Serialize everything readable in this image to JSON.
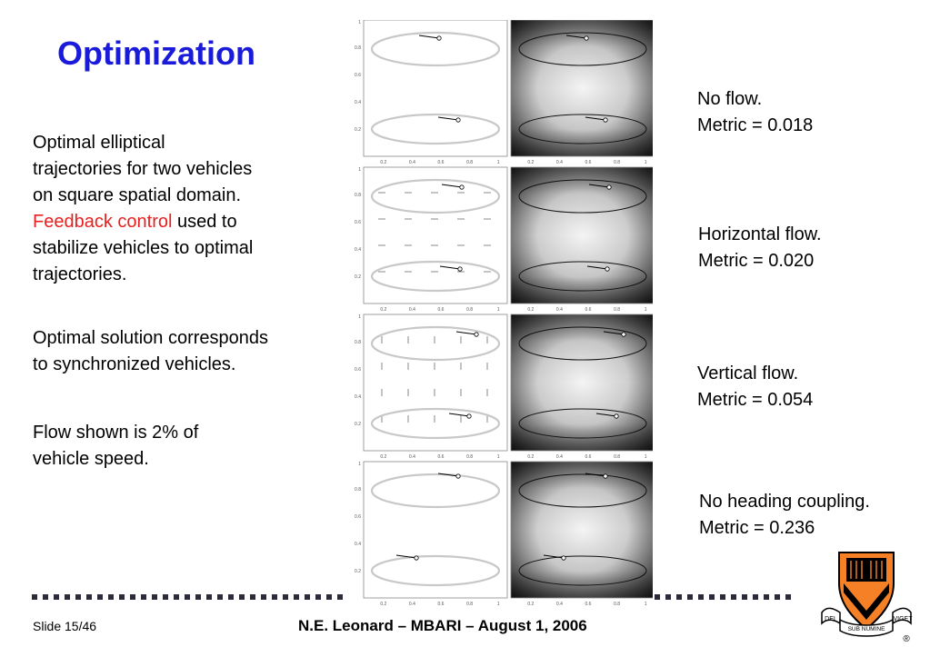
{
  "slide": {
    "title": "Optimization",
    "body": {
      "p1_line1": "Optimal elliptical",
      "p1_line2": "trajectories for two vehicles",
      "p1_line3": "on square spatial domain.",
      "p1_red": "Feedback control",
      "p1_after_red": " used to",
      "p1_line5": "stabilize vehicles to optimal",
      "p1_line6": "trajectories.",
      "p2_line1": "Optimal solution corresponds",
      "p2_line2": "to synchronized vehicles.",
      "p3_line1": "Flow shown is 2% of",
      "p3_line2": "vehicle speed."
    },
    "captions": [
      {
        "line1": "No flow.",
        "line2": "Metric = 0.018"
      },
      {
        "line1": "Horizontal flow.",
        "line2": "Metric = 0.020"
      },
      {
        "line1": "Vertical flow.",
        "line2": "Metric = 0.054"
      },
      {
        "line1": "No heading coupling.",
        "line2": "Metric = 0.236"
      }
    ],
    "footer": {
      "slide_number": "Slide 15/46",
      "center": "N.E. Leonard – MBARI –  August 1, 2006"
    },
    "seal": {
      "left_ribbon": "DEI",
      "center_ribbon": "SUB NUMINE",
      "right_ribbon": "VIGET",
      "registered": "®"
    },
    "panels": {
      "tick_labels": [
        "0.2",
        "0.4",
        "0.6",
        "0.8",
        "1"
      ],
      "row_flows": [
        "none",
        "horizontal",
        "vertical",
        "none"
      ]
    }
  }
}
